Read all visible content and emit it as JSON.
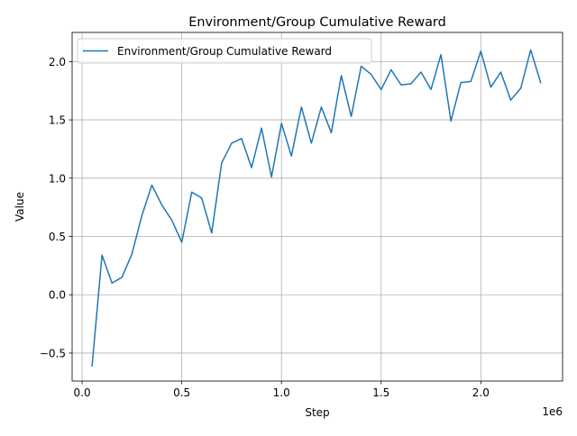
{
  "chart_data": {
    "type": "line",
    "title": "Environment/Group Cumulative Reward",
    "xlabel": "Step",
    "ylabel": "Value",
    "x_offset_label": "1e6",
    "xlim": [
      -0.05,
      2.41
    ],
    "ylim": [
      -0.74,
      2.25
    ],
    "x_ticks": [
      0.0,
      0.5,
      1.0,
      1.5,
      2.0
    ],
    "x_tick_labels": [
      "0.0",
      "0.5",
      "1.0",
      "1.5",
      "2.0"
    ],
    "y_ticks": [
      -0.5,
      0.0,
      0.5,
      1.0,
      1.5,
      2.0
    ],
    "y_tick_labels": [
      "−0.5",
      "0.0",
      "0.5",
      "1.0",
      "1.5",
      "2.0"
    ],
    "grid": true,
    "legend_position": "top-left",
    "series": [
      {
        "name": "Environment/Group Cumulative Reward",
        "color": "#1f77b4",
        "x": [
          0.05,
          0.1,
          0.15,
          0.2,
          0.25,
          0.3,
          0.35,
          0.4,
          0.45,
          0.5,
          0.55,
          0.6,
          0.65,
          0.7,
          0.75,
          0.8,
          0.85,
          0.9,
          0.95,
          1.0,
          1.05,
          1.1,
          1.15,
          1.2,
          1.25,
          1.3,
          1.35,
          1.4,
          1.45,
          1.5,
          1.55,
          1.6,
          1.65,
          1.7,
          1.75,
          1.8,
          1.85,
          1.9,
          1.95,
          2.0,
          2.05,
          2.1,
          2.15,
          2.2,
          2.25,
          2.3
        ],
        "values": [
          -0.61,
          0.34,
          0.1,
          0.15,
          0.35,
          0.68,
          0.94,
          0.77,
          0.64,
          0.45,
          0.88,
          0.83,
          0.53,
          1.13,
          1.3,
          1.34,
          1.09,
          1.43,
          1.01,
          1.47,
          1.19,
          1.61,
          1.3,
          1.61,
          1.39,
          1.88,
          1.53,
          1.96,
          1.89,
          1.76,
          1.93,
          1.8,
          1.81,
          1.91,
          1.76,
          2.06,
          1.49,
          1.82,
          1.83,
          2.09,
          1.78,
          1.91,
          1.67,
          1.77,
          2.1,
          1.82
        ]
      }
    ]
  }
}
